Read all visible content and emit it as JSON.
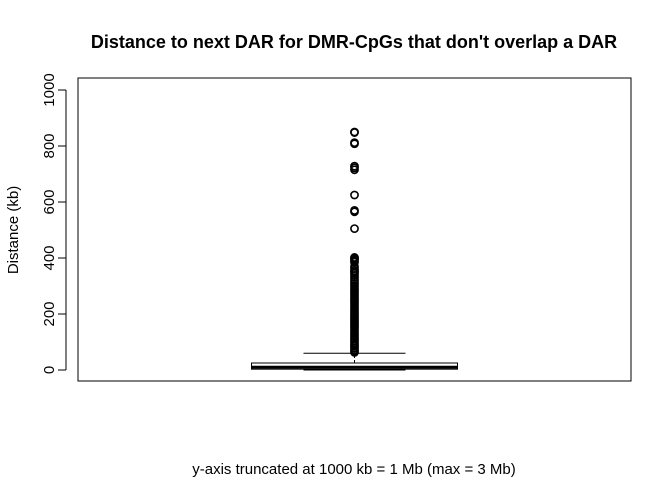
{
  "chart_data": {
    "type": "boxplot",
    "title": "Distance to next DAR for DMR-CpGs that don't overlap a DAR",
    "xlabel": "y-axis truncated at 1000 kb = 1 Mb (max = 3 Mb)",
    "ylabel": "Distance (kb)",
    "ylim": [
      0,
      1000
    ],
    "yticks": [
      "0",
      "200",
      "400",
      "600",
      "800",
      "1000"
    ],
    "yticks_values": [
      0,
      200,
      400,
      600,
      800,
      1000
    ],
    "box": {
      "min": 0,
      "q1": 3,
      "median": 10,
      "q3": 25,
      "upper_whisker": 60
    },
    "outliers": [
      850,
      848,
      812,
      808,
      728,
      722,
      715,
      625,
      570,
      565,
      505,
      402,
      398,
      395,
      390,
      385,
      370,
      362,
      355,
      350,
      345,
      338,
      330,
      322,
      315,
      308,
      300,
      292,
      285,
      278,
      272,
      265,
      258,
      250,
      243,
      236,
      229,
      222,
      215,
      208,
      201,
      194,
      187,
      180,
      173,
      166,
      159,
      152,
      145,
      138,
      131,
      124,
      117,
      110,
      103,
      96,
      90,
      84,
      78,
      72,
      67,
      63
    ]
  }
}
